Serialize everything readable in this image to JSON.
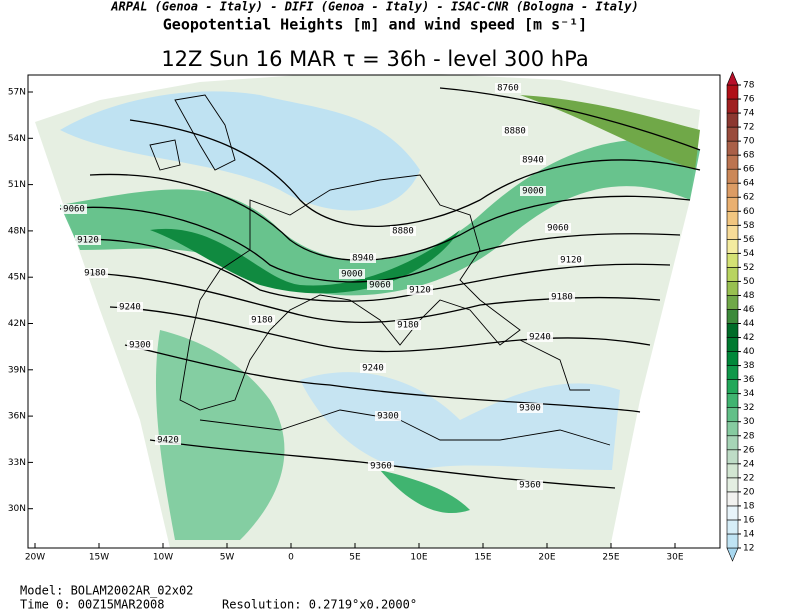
{
  "header": {
    "institutions": "ARPAL (Genoa - Italy)  -  DIFI (Genoa - Italy)  -  ISAC-CNR (Bologna - Italy)",
    "title": "Geopotential Heights [m] and wind speed [m s⁻¹]",
    "subtitle": "12Z Sun 16 MAR  τ = 36h  -  level 300 hPa"
  },
  "map": {
    "lat_labels": [
      "57N",
      "54N",
      "51N",
      "48N",
      "45N",
      "42N",
      "39N",
      "36N",
      "33N",
      "30N"
    ],
    "lon_labels": [
      "20W",
      "15W",
      "10W",
      "5W",
      "0",
      "5E",
      "10E",
      "15E",
      "20E",
      "25E",
      "30E"
    ],
    "contour_labels": [
      8760,
      8880,
      8940,
      9000,
      9060,
      9120,
      9180,
      9240,
      9300,
      9420,
      8880,
      8940,
      9000,
      9060,
      9120,
      9060,
      9120,
      9180,
      9180,
      9180,
      9240,
      9240,
      9300,
      9300,
      9360,
      9360
    ]
  },
  "colorbar": {
    "ticks": [
      12,
      14,
      16,
      18,
      20,
      22,
      24,
      26,
      28,
      30,
      32,
      34,
      36,
      38,
      40,
      42,
      44,
      46,
      48,
      50,
      52,
      54,
      56,
      58,
      60,
      62,
      64,
      66,
      68,
      70,
      72,
      74,
      76,
      78
    ],
    "colors": [
      "#a8d8f0",
      "#c0e4f4",
      "#d6eef8",
      "#e8f4fa",
      "#f2f2f0",
      "#e4efe2",
      "#d2e6d2",
      "#bedcc6",
      "#a6d4b6",
      "#86cba0",
      "#62c088",
      "#40b470",
      "#22a85a",
      "#10984a",
      "#00883a",
      "#007a30",
      "#006c28",
      "#3c8a3a",
      "#70a848",
      "#98c050",
      "#b8d460",
      "#d4e274",
      "#f4eca0",
      "#f8dc98",
      "#f2c680",
      "#eab070",
      "#dc9c64",
      "#cc8858",
      "#bc7450",
      "#aa6048",
      "#9a4c3c",
      "#8c3830",
      "#a02020",
      "#b01018",
      "#b8102a"
    ]
  },
  "footer": {
    "model": "Model:  BOLAM2002AR_02x02",
    "time": "Time 0:  00Z15MAR2008",
    "resolution": "Resolution:  0.2719°x0.2000°"
  }
}
